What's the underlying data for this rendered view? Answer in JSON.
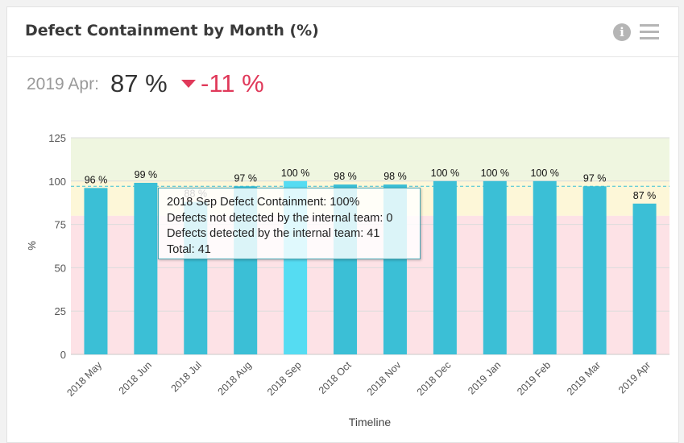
{
  "header": {
    "title": "Defect Containment by Month (%)",
    "info_icon": "info-icon",
    "menu_icon": "hamburger-menu-icon"
  },
  "kpi": {
    "period": "2019 Apr:",
    "value": "87 %",
    "delta": "-11 %",
    "delta_direction": "down",
    "delta_color": "#e0395a"
  },
  "tooltip": {
    "lines": [
      "2018 Sep Defect Containment: 100%",
      "Defects not detected by the internal team: 0",
      "Defects detected by the internal team: 41",
      "Total: 41"
    ]
  },
  "chart_data": {
    "type": "bar",
    "categories": [
      "2018 May",
      "2018 Jun",
      "2018 Jul",
      "2018 Aug",
      "2018 Sep",
      "2018 Oct",
      "2018 Nov",
      "2018 Dec",
      "2019 Jan",
      "2019 Feb",
      "2019 Mar",
      "2019 Apr"
    ],
    "values": [
      96,
      99,
      88,
      97,
      100,
      98,
      98,
      100,
      100,
      100,
      97,
      87
    ],
    "data_labels": [
      "96 %",
      "99 %",
      "88 %",
      "97 %",
      "100 %",
      "98 %",
      "98 %",
      "100 %",
      "100 %",
      "100 %",
      "97 %",
      "87 %"
    ],
    "highlighted_index": 4,
    "xlabel": "Timeline",
    "ylabel": "%",
    "ylim": [
      0,
      125
    ],
    "yticks": [
      0,
      25,
      50,
      75,
      100,
      125
    ],
    "target_line": 97,
    "bands": [
      {
        "from": 0,
        "to": 80,
        "color": "#fde2e6"
      },
      {
        "from": 80,
        "to": 100,
        "color": "#fdf7d8"
      },
      {
        "from": 100,
        "to": 125,
        "color": "#eff6e0"
      }
    ],
    "colors": {
      "bar": "#3bbfd6",
      "bar_highlight": "#55dcf2",
      "target_line": "#3bbfd6"
    },
    "grid": true
  }
}
